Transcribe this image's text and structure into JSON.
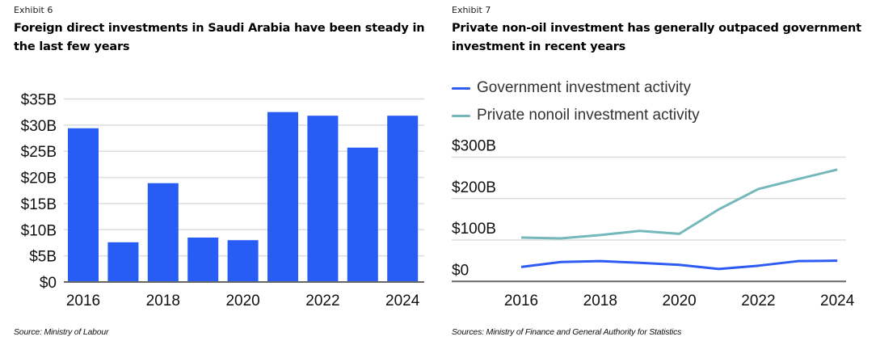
{
  "colors": {
    "bar": "#275df5",
    "government": "#2d5cf5",
    "private": "#74b8bc",
    "gridline": "#dddddd",
    "axis": "#666666"
  },
  "left": {
    "exhibit": "Exhibit 6",
    "title": "Foreign direct investments in Saudi Arabia have been steady in the last few years",
    "source": "Source: Ministry of Labour"
  },
  "right": {
    "exhibit": "Exhibit 7",
    "title": "Private non-oil investment has generally outpaced government investment in recent years",
    "source": "Sources: Ministry of Finance and General Authority for Statistics",
    "legend": [
      {
        "label": "Government investment activity",
        "color_key": "government"
      },
      {
        "label": "Private nonoil investment activity",
        "color_key": "private"
      }
    ]
  },
  "chart_data": [
    {
      "type": "bar",
      "title": "Foreign direct investments in Saudi Arabia have been steady in the last few years",
      "categories": [
        "2016",
        "2017",
        "2018",
        "2019",
        "2020",
        "2021",
        "2022",
        "2023",
        "2024"
      ],
      "values": [
        29.4,
        7.6,
        18.9,
        8.5,
        8.0,
        32.5,
        31.8,
        25.7,
        31.8
      ],
      "unit": "USD billions",
      "xlabel": "",
      "ylabel": "",
      "ylim": [
        0,
        35
      ],
      "yticks": [
        0,
        5,
        10,
        15,
        20,
        25,
        30,
        35
      ],
      "ytick_labels": [
        "$0",
        "$5B",
        "$10B",
        "$15B",
        "$20B",
        "$25B",
        "$30B",
        "$35B"
      ],
      "xtick_labels": [
        "2016",
        "2018",
        "2020",
        "2022",
        "2024"
      ],
      "grid": true
    },
    {
      "type": "line",
      "title": "Private non-oil investment has generally outpaced government investment in recent years",
      "x": [
        2016,
        2017,
        2018,
        2019,
        2020,
        2021,
        2022,
        2023,
        2024
      ],
      "series": [
        {
          "name": "Government investment activity",
          "values": [
            35,
            47,
            49,
            45,
            40,
            30,
            38,
            49,
            50
          ]
        },
        {
          "name": "Private nonoil investment activity",
          "values": [
            106,
            104,
            112,
            122,
            115,
            174,
            223,
            247,
            270
          ]
        }
      ],
      "unit": "USD billions",
      "xlabel": "",
      "ylabel": "",
      "ylim": [
        0,
        300
      ],
      "yticks": [
        0,
        100,
        200,
        300
      ],
      "ytick_labels": [
        "$0",
        "$100B",
        "$200B",
        "$300B"
      ],
      "xtick_labels": [
        "2016",
        "2018",
        "2020",
        "2022",
        "2024"
      ],
      "legend_position": "top-left",
      "grid": true
    }
  ]
}
